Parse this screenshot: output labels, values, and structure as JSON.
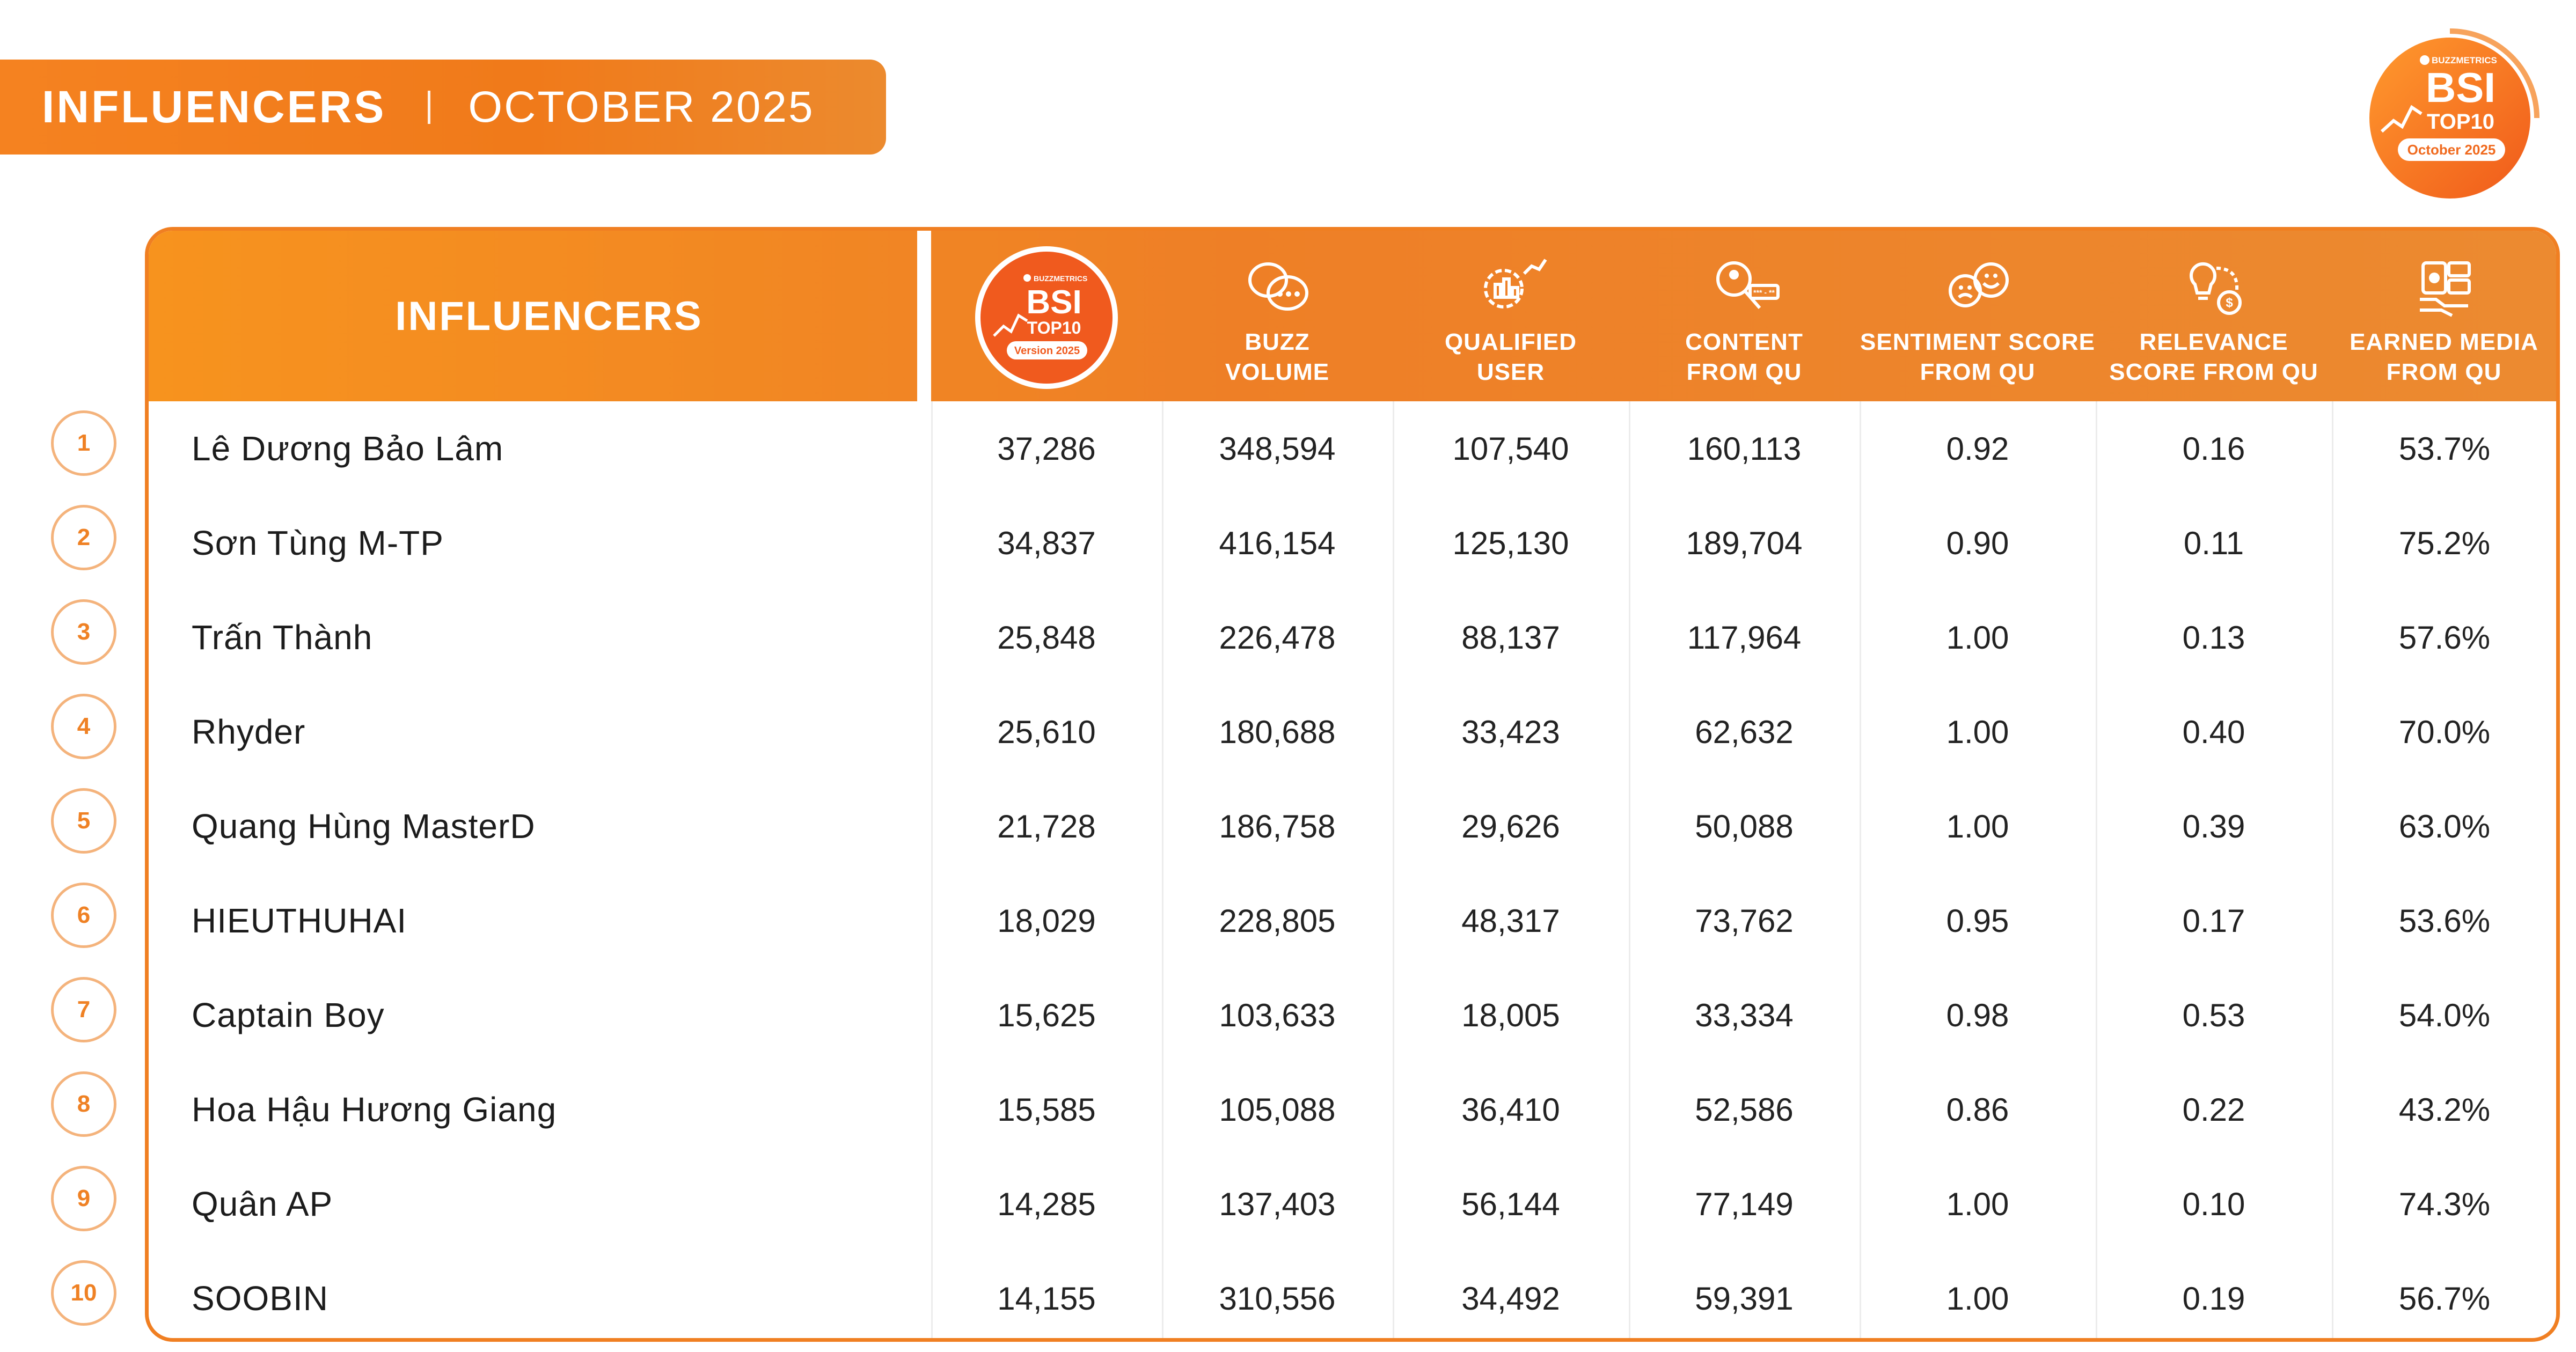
{
  "banner": {
    "title": "INFLUENCERS",
    "month": "OCTOBER 2025"
  },
  "top_logo": {
    "brand": "BUZZMETRICS",
    "title": "BSI",
    "sub": "TOP10",
    "period": "October 2025"
  },
  "table": {
    "name_header": "INFLUENCERS",
    "bsi_badge": {
      "brand": "BUZZMETRICS",
      "title": "BSI",
      "sub": "TOP10",
      "version": "Version 2025"
    },
    "columns": [
      {
        "label": "BUZZ\nVOLUME",
        "icon": "chat-bubbles-icon"
      },
      {
        "label": "QUALIFIED\nUSER",
        "icon": "gear-users-icon"
      },
      {
        "label": "CONTENT\nFROM QU",
        "icon": "magnifier-person-icon"
      },
      {
        "label": "SENTIMENT SCORE\nFROM QU",
        "icon": "emoji-faces-icon"
      },
      {
        "label": "RELEVANCE\nSCORE FROM QU",
        "icon": "bulb-coin-icon"
      },
      {
        "label": "EARNED MEDIA\nFROM QU",
        "icon": "media-hand-icon"
      }
    ],
    "rows": [
      {
        "rank": "1",
        "name": "Lê Dương Bảo Lâm",
        "bsi": "37,286",
        "buzz": "348,594",
        "qu": "107,540",
        "content": "160,113",
        "sentiment": "0.92",
        "relevance": "0.16",
        "earned": "53.7%"
      },
      {
        "rank": "2",
        "name": "Sơn Tùng M-TP",
        "bsi": "34,837",
        "buzz": "416,154",
        "qu": "125,130",
        "content": "189,704",
        "sentiment": "0.90",
        "relevance": "0.11",
        "earned": "75.2%"
      },
      {
        "rank": "3",
        "name": "Trấn Thành",
        "bsi": "25,848",
        "buzz": "226,478",
        "qu": "88,137",
        "content": "117,964",
        "sentiment": "1.00",
        "relevance": "0.13",
        "earned": "57.6%"
      },
      {
        "rank": "4",
        "name": "Rhyder",
        "bsi": "25,610",
        "buzz": "180,688",
        "qu": "33,423",
        "content": "62,632",
        "sentiment": "1.00",
        "relevance": "0.40",
        "earned": "70.0%"
      },
      {
        "rank": "5",
        "name": "Quang Hùng MasterD",
        "bsi": "21,728",
        "buzz": "186,758",
        "qu": "29,626",
        "content": "50,088",
        "sentiment": "1.00",
        "relevance": "0.39",
        "earned": "63.0%"
      },
      {
        "rank": "6",
        "name": "HIEUTHUHAI",
        "bsi": "18,029",
        "buzz": "228,805",
        "qu": "48,317",
        "content": "73,762",
        "sentiment": "0.95",
        "relevance": "0.17",
        "earned": "53.6%"
      },
      {
        "rank": "7",
        "name": "Captain Boy",
        "bsi": "15,625",
        "buzz": "103,633",
        "qu": "18,005",
        "content": "33,334",
        "sentiment": "0.98",
        "relevance": "0.53",
        "earned": "54.0%"
      },
      {
        "rank": "8",
        "name": "Hoa Hậu Hương Giang",
        "bsi": "15,585",
        "buzz": "105,088",
        "qu": "36,410",
        "content": "52,586",
        "sentiment": "0.86",
        "relevance": "0.22",
        "earned": "43.2%"
      },
      {
        "rank": "9",
        "name": "Quân AP",
        "bsi": "14,285",
        "buzz": "137,403",
        "qu": "56,144",
        "content": "77,149",
        "sentiment": "1.00",
        "relevance": "0.10",
        "earned": "74.3%"
      },
      {
        "rank": "10",
        "name": "SOOBIN",
        "bsi": "14,155",
        "buzz": "310,556",
        "qu": "34,492",
        "content": "59,391",
        "sentiment": "1.00",
        "relevance": "0.19",
        "earned": "56.7%"
      }
    ]
  },
  "colors": {
    "accent": "#f07f22",
    "rank_border": "#f4b37c"
  }
}
